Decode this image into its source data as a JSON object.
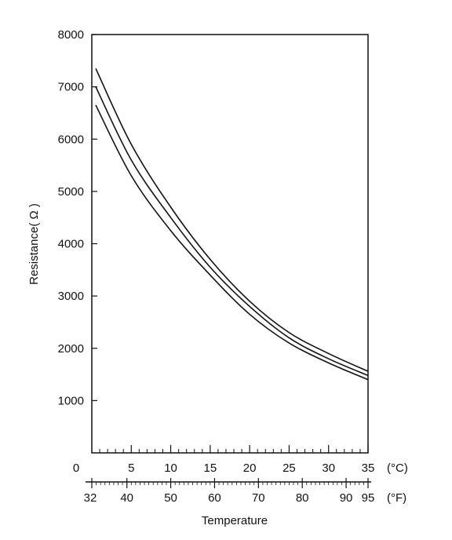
{
  "chart_data": {
    "type": "line",
    "ylabel": "Resistance( Ω )",
    "xlabel": "Temperature",
    "ylim": [
      0,
      8000
    ],
    "xlim_c": [
      0,
      35
    ],
    "y_ticks": [
      {
        "value": 1000,
        "label": "1000"
      },
      {
        "value": 2000,
        "label": "2000"
      },
      {
        "value": 3000,
        "label": "3000"
      },
      {
        "value": 4000,
        "label": "4000"
      },
      {
        "value": 5000,
        "label": "5000"
      },
      {
        "value": 6000,
        "label": "6000"
      },
      {
        "value": 7000,
        "label": "7000"
      },
      {
        "value": 8000,
        "label": "8000"
      }
    ],
    "origin_label": "0",
    "celsius_axis": {
      "unit_label": "(°C)",
      "ticks": [
        {
          "value": 5,
          "label": "5"
        },
        {
          "value": 10,
          "label": "10"
        },
        {
          "value": 15,
          "label": "15"
        },
        {
          "value": 20,
          "label": "20"
        },
        {
          "value": 25,
          "label": "25"
        },
        {
          "value": 30,
          "label": "30"
        },
        {
          "value": 35,
          "label": "35"
        }
      ],
      "minor_ticks": [
        1,
        2,
        3,
        4,
        6,
        7,
        8,
        9,
        11,
        12,
        13,
        14,
        16,
        17,
        18,
        19,
        21,
        22,
        23,
        24,
        26,
        27,
        28,
        29,
        31,
        32,
        33,
        34
      ]
    },
    "fahrenheit_axis": {
      "unit_label": "(°F)",
      "ticks": [
        {
          "value": 32,
          "label": "32"
        },
        {
          "value": 40,
          "label": "40"
        },
        {
          "value": 50,
          "label": "50"
        },
        {
          "value": 60,
          "label": "60"
        },
        {
          "value": 70,
          "label": "70"
        },
        {
          "value": 80,
          "label": "80"
        },
        {
          "value": 90,
          "label": "90"
        },
        {
          "value": 95,
          "label": "95"
        }
      ]
    },
    "series": [
      {
        "x": [
          0.5,
          5,
          10,
          15,
          20,
          25,
          30,
          35
        ],
        "values": [
          7350,
          5900,
          4700,
          3700,
          2900,
          2300,
          1900,
          1560
        ]
      },
      {
        "x": [
          0.5,
          5,
          10,
          15,
          20,
          25,
          30,
          35
        ],
        "values": [
          7000,
          5600,
          4500,
          3550,
          2800,
          2200,
          1800,
          1480
        ]
      },
      {
        "x": [
          0.5,
          5,
          10,
          15,
          20,
          25,
          30,
          35
        ],
        "values": [
          6650,
          5300,
          4250,
          3400,
          2650,
          2100,
          1720,
          1400
        ]
      }
    ],
    "line_color": "#111111"
  }
}
